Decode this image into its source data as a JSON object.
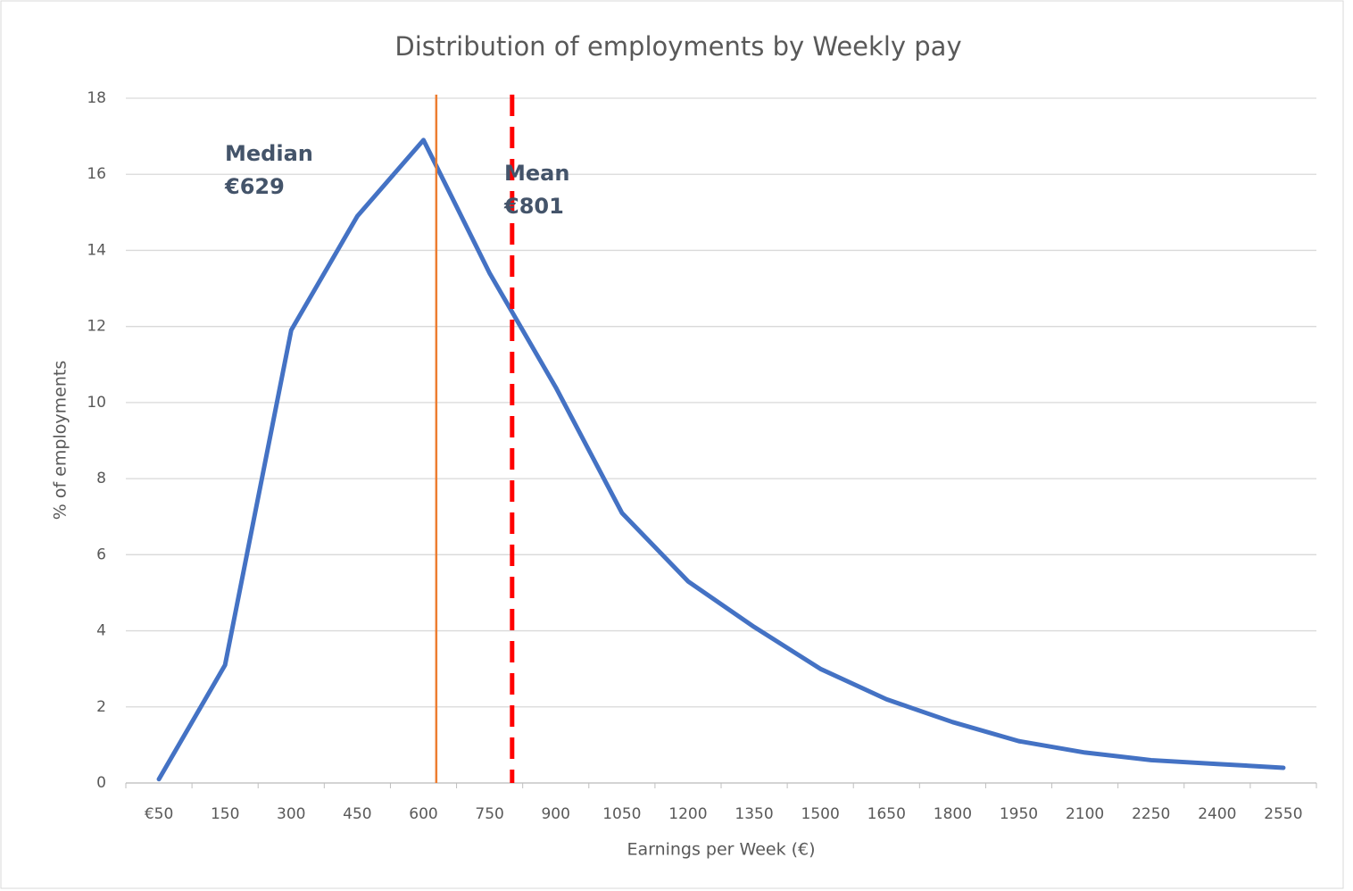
{
  "chart_data": {
    "type": "line",
    "title": "Distribution of employments by Weekly pay",
    "xlabel": "Earnings per Week (€)",
    "ylabel": "% of employments",
    "categories": [
      "€50",
      "150",
      "300",
      "450",
      "600",
      "750",
      "900",
      "1050",
      "1200",
      "1350",
      "1500",
      "1650",
      "1800",
      "1950",
      "2100",
      "2250",
      "2400",
      "2550"
    ],
    "series": [
      {
        "name": "% of employments",
        "color": "#4472c4",
        "values": [
          0.1,
          3.1,
          11.9,
          14.9,
          16.9,
          13.4,
          10.4,
          7.1,
          5.3,
          4.1,
          3.0,
          2.2,
          1.6,
          1.1,
          0.8,
          0.6,
          0.5,
          0.4
        ]
      }
    ],
    "ylim": [
      0,
      18
    ],
    "yticks": [
      0,
      2,
      4,
      6,
      8,
      10,
      12,
      14,
      16,
      18
    ],
    "grid": true,
    "reference_lines": [
      {
        "label": "Median",
        "value": 629,
        "value_label": "€629",
        "color": "#ed7d31",
        "style": "solid"
      },
      {
        "label": "Mean",
        "value": 801,
        "value_label": "€801",
        "color": "#ff0000",
        "style": "dashed"
      }
    ]
  }
}
